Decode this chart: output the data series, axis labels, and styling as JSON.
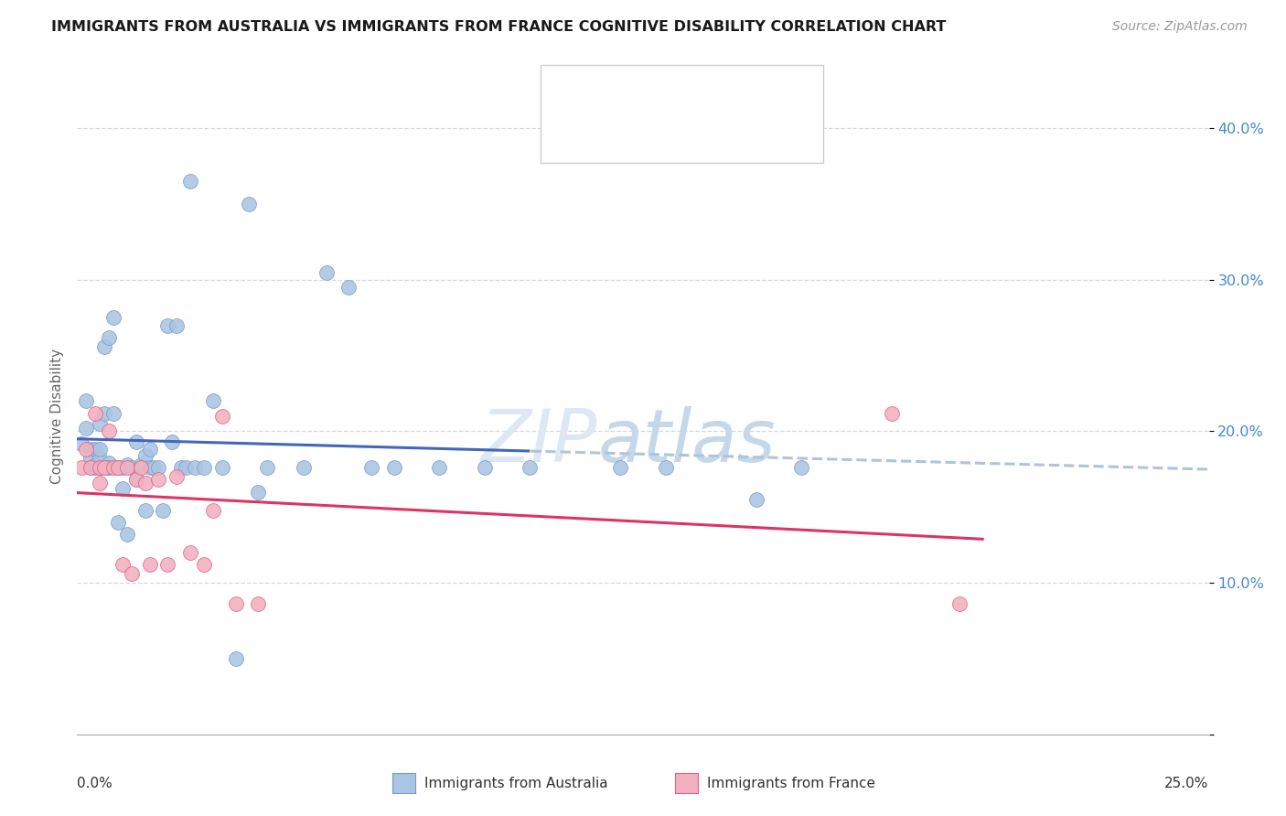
{
  "title": "IMMIGRANTS FROM AUSTRALIA VS IMMIGRANTS FROM FRANCE COGNITIVE DISABILITY CORRELATION CHART",
  "source": "Source: ZipAtlas.com",
  "ylabel": "Cognitive Disability",
  "xlim": [
    0.0,
    0.25
  ],
  "ylim": [
    0.0,
    0.42
  ],
  "yticks": [
    0.0,
    0.1,
    0.2,
    0.3,
    0.4
  ],
  "ytick_labels": [
    "",
    "10.0%",
    "20.0%",
    "30.0%",
    "40.0%"
  ],
  "australia_color": "#aac4e2",
  "france_color": "#f2b0c0",
  "australia_edge": "#7799cc",
  "france_edge": "#e06080",
  "trendline_australia": "#4466bb",
  "trendline_france": "#dd3366",
  "trendline_dashed": "#b0c4d8",
  "aus_x": [
    0.001,
    0.002,
    0.002,
    0.003,
    0.003,
    0.003,
    0.004,
    0.004,
    0.004,
    0.005,
    0.005,
    0.005,
    0.005,
    0.006,
    0.006,
    0.006,
    0.007,
    0.007,
    0.007,
    0.007,
    0.008,
    0.008,
    0.009,
    0.009,
    0.01,
    0.01,
    0.011,
    0.011,
    0.012,
    0.013,
    0.013,
    0.014,
    0.015,
    0.015,
    0.016,
    0.016,
    0.017,
    0.018,
    0.019,
    0.02,
    0.021,
    0.022,
    0.023,
    0.024,
    0.025,
    0.026,
    0.028,
    0.03,
    0.032,
    0.035,
    0.038,
    0.04,
    0.042,
    0.05,
    0.055,
    0.06,
    0.065,
    0.07,
    0.08,
    0.09,
    0.1,
    0.12,
    0.13,
    0.15,
    0.16
  ],
  "aus_y": [
    0.192,
    0.202,
    0.22,
    0.188,
    0.176,
    0.183,
    0.176,
    0.178,
    0.188,
    0.205,
    0.176,
    0.182,
    0.188,
    0.256,
    0.212,
    0.176,
    0.262,
    0.176,
    0.179,
    0.176,
    0.275,
    0.212,
    0.176,
    0.14,
    0.176,
    0.162,
    0.178,
    0.132,
    0.176,
    0.193,
    0.168,
    0.178,
    0.184,
    0.148,
    0.188,
    0.176,
    0.176,
    0.176,
    0.148,
    0.27,
    0.193,
    0.27,
    0.176,
    0.176,
    0.365,
    0.176,
    0.176,
    0.22,
    0.176,
    0.05,
    0.35,
    0.16,
    0.176,
    0.176,
    0.305,
    0.295,
    0.176,
    0.176,
    0.176,
    0.176,
    0.176,
    0.176,
    0.176,
    0.155,
    0.176
  ],
  "fr_x": [
    0.001,
    0.002,
    0.003,
    0.004,
    0.005,
    0.005,
    0.006,
    0.007,
    0.008,
    0.009,
    0.01,
    0.011,
    0.012,
    0.013,
    0.014,
    0.015,
    0.016,
    0.018,
    0.02,
    0.022,
    0.025,
    0.028,
    0.03,
    0.032,
    0.035,
    0.04,
    0.18,
    0.195
  ],
  "fr_y": [
    0.176,
    0.188,
    0.176,
    0.212,
    0.166,
    0.176,
    0.176,
    0.2,
    0.176,
    0.176,
    0.112,
    0.176,
    0.106,
    0.168,
    0.176,
    0.166,
    0.112,
    0.168,
    0.112,
    0.17,
    0.12,
    0.112,
    0.148,
    0.21,
    0.086,
    0.086,
    0.212,
    0.086
  ]
}
